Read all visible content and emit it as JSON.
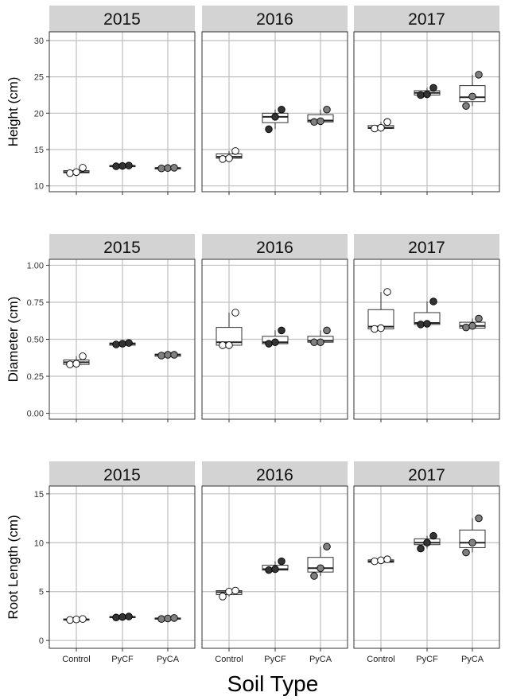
{
  "xlabel": "Soil Type",
  "colors": {
    "Control": "#ffffff",
    "PyCF": "#333333",
    "PyCA": "#808080",
    "strip": "#d3d3d3",
    "grid": "#bfbfbf"
  },
  "chart_data": [
    {
      "type": "box",
      "ylabel": "Height (cm)",
      "ylim": [
        9.2,
        31.2
      ],
      "yticks": [
        10,
        15,
        20,
        25,
        30
      ],
      "grid": true,
      "categories": [
        "Control",
        "PyCF",
        "PyCA"
      ],
      "facets": [
        {
          "year": "2015",
          "groups": [
            {
              "category": "Control",
              "box": [
                11.8,
                11.9,
                12.1
              ],
              "whisker": [
                11.7,
                12.2
              ],
              "points": [
                11.75,
                11.9,
                12.5
              ]
            },
            {
              "category": "PyCF",
              "box": [
                12.7,
                12.75,
                12.8
              ],
              "whisker": [
                12.7,
                12.8
              ],
              "points": [
                12.7,
                12.75,
                12.8
              ]
            },
            {
              "category": "PyCA",
              "box": [
                12.4,
                12.45,
                12.5
              ],
              "whisker": [
                12.4,
                12.5
              ],
              "points": [
                12.4,
                12.45,
                12.5
              ]
            }
          ]
        },
        {
          "year": "2016",
          "groups": [
            {
              "category": "Control",
              "box": [
                13.8,
                14.0,
                14.4
              ],
              "whisker": [
                13.7,
                14.8
              ],
              "points": [
                13.7,
                13.8,
                14.8
              ]
            },
            {
              "category": "PyCF",
              "box": [
                18.7,
                19.5,
                20.0
              ],
              "whisker": [
                17.8,
                20.5
              ],
              "points": [
                17.8,
                19.5,
                20.5
              ]
            },
            {
              "category": "PyCA",
              "box": [
                18.8,
                19.0,
                19.8
              ],
              "whisker": [
                18.8,
                20.5
              ],
              "points": [
                18.8,
                18.9,
                20.5
              ]
            }
          ]
        },
        {
          "year": "2017",
          "groups": [
            {
              "category": "Control",
              "box": [
                17.9,
                18.0,
                18.3
              ],
              "whisker": [
                17.9,
                18.8
              ],
              "points": [
                17.9,
                18.0,
                18.8
              ]
            },
            {
              "category": "PyCF",
              "box": [
                22.5,
                22.8,
                23.1
              ],
              "whisker": [
                22.5,
                23.5
              ],
              "points": [
                22.5,
                22.6,
                23.5
              ]
            },
            {
              "category": "PyCA",
              "box": [
                21.6,
                22.2,
                23.8
              ],
              "whisker": [
                21.0,
                25.3
              ],
              "points": [
                21.0,
                22.3,
                25.3
              ]
            }
          ]
        }
      ]
    },
    {
      "type": "box",
      "ylabel": "Diameter (cm)",
      "ylim": [
        -0.04,
        1.04
      ],
      "yticks": [
        0.0,
        0.25,
        0.5,
        0.75,
        1.0
      ],
      "yticklabels": [
        "0.00",
        "0.25",
        "0.50",
        "0.75",
        "1.00"
      ],
      "grid": true,
      "categories": [
        "Control",
        "PyCF",
        "PyCA"
      ],
      "facets": [
        {
          "year": "2015",
          "groups": [
            {
              "category": "Control",
              "box": [
                0.33,
                0.345,
                0.36
              ],
              "whisker": [
                0.33,
                0.385
              ],
              "points": [
                0.33,
                0.335,
                0.385
              ]
            },
            {
              "category": "PyCF",
              "box": [
                0.46,
                0.47,
                0.475
              ],
              "whisker": [
                0.46,
                0.475
              ],
              "points": [
                0.465,
                0.47,
                0.475
              ]
            },
            {
              "category": "PyCA",
              "box": [
                0.385,
                0.395,
                0.4
              ],
              "whisker": [
                0.385,
                0.4
              ],
              "points": [
                0.39,
                0.395,
                0.395
              ]
            }
          ]
        },
        {
          "year": "2016",
          "groups": [
            {
              "category": "Control",
              "box": [
                0.46,
                0.48,
                0.58
              ],
              "whisker": [
                0.46,
                0.68
              ],
              "points": [
                0.46,
                0.46,
                0.68
              ]
            },
            {
              "category": "PyCF",
              "box": [
                0.47,
                0.48,
                0.52
              ],
              "whisker": [
                0.47,
                0.56
              ],
              "points": [
                0.47,
                0.48,
                0.56
              ]
            },
            {
              "category": "PyCA",
              "box": [
                0.48,
                0.49,
                0.52
              ],
              "whisker": [
                0.48,
                0.56
              ],
              "points": [
                0.48,
                0.48,
                0.56
              ]
            }
          ]
        },
        {
          "year": "2017",
          "groups": [
            {
              "category": "Control",
              "box": [
                0.57,
                0.585,
                0.7
              ],
              "whisker": [
                0.57,
                0.82
              ],
              "points": [
                0.57,
                0.575,
                0.82
              ]
            },
            {
              "category": "PyCF",
              "box": [
                0.6,
                0.61,
                0.68
              ],
              "whisker": [
                0.6,
                0.755
              ],
              "points": [
                0.6,
                0.605,
                0.755
              ]
            },
            {
              "category": "PyCA",
              "box": [
                0.575,
                0.59,
                0.615
              ],
              "whisker": [
                0.575,
                0.64
              ],
              "points": [
                0.58,
                0.59,
                0.64
              ]
            }
          ]
        }
      ]
    },
    {
      "type": "box",
      "ylabel": "Root Length (cm)",
      "ylim": [
        -0.8,
        15.8
      ],
      "yticks": [
        0,
        5,
        10,
        15
      ],
      "grid": true,
      "categories": [
        "Control",
        "PyCF",
        "PyCA"
      ],
      "facets": [
        {
          "year": "2015",
          "groups": [
            {
              "category": "Control",
              "box": [
                2.1,
                2.15,
                2.2
              ],
              "whisker": [
                2.1,
                2.2
              ],
              "points": [
                2.1,
                2.15,
                2.2
              ]
            },
            {
              "category": "PyCF",
              "box": [
                2.35,
                2.4,
                2.45
              ],
              "whisker": [
                2.35,
                2.45
              ],
              "points": [
                2.35,
                2.4,
                2.45
              ]
            },
            {
              "category": "PyCA",
              "box": [
                2.2,
                2.25,
                2.3
              ],
              "whisker": [
                2.2,
                2.3
              ],
              "points": [
                2.2,
                2.25,
                2.3
              ]
            }
          ]
        },
        {
          "year": "2016",
          "groups": [
            {
              "category": "Control",
              "box": [
                4.7,
                4.95,
                5.1
              ],
              "whisker": [
                4.5,
                5.1
              ],
              "points": [
                4.5,
                5.0,
                5.1
              ]
            },
            {
              "category": "PyCF",
              "box": [
                7.2,
                7.3,
                7.7
              ],
              "whisker": [
                7.2,
                8.1
              ],
              "points": [
                7.2,
                7.3,
                8.1
              ]
            },
            {
              "category": "PyCA",
              "box": [
                7.0,
                7.4,
                8.5
              ],
              "whisker": [
                6.6,
                9.6
              ],
              "points": [
                6.6,
                7.4,
                9.6
              ]
            }
          ]
        },
        {
          "year": "2017",
          "groups": [
            {
              "category": "Control",
              "box": [
                8.0,
                8.1,
                8.25
              ],
              "whisker": [
                8.0,
                8.3
              ],
              "points": [
                8.1,
                8.2,
                8.3
              ]
            },
            {
              "category": "PyCF",
              "box": [
                9.8,
                10.0,
                10.4
              ],
              "whisker": [
                9.4,
                10.7
              ],
              "points": [
                9.4,
                10.0,
                10.7
              ]
            },
            {
              "category": "PyCA",
              "box": [
                9.5,
                10.0,
                11.3
              ],
              "whisker": [
                9.0,
                12.5
              ],
              "points": [
                9.0,
                10.0,
                12.5
              ]
            }
          ]
        }
      ]
    }
  ]
}
